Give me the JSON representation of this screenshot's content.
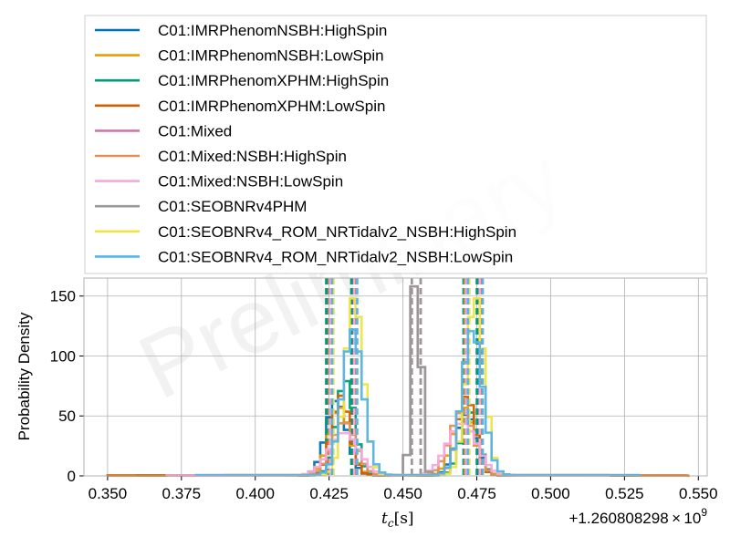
{
  "chart_data": {
    "type": "histogram",
    "title": "",
    "xlabel_var": "t",
    "xlabel_sub": "c",
    "xlabel_unit": "[s]",
    "ylabel": "Probability Density",
    "x_offset_label": "+1.260808298 × 10",
    "x_offset_exp": "9",
    "watermark": "Preliminary",
    "xlim": [
      0.342,
      0.553
    ],
    "ylim": [
      0,
      165
    ],
    "grid": true,
    "legend_location": "top",
    "x_ticks": [
      {
        "value": 0.35,
        "label": "0.350"
      },
      {
        "value": 0.375,
        "label": "0.375"
      },
      {
        "value": 0.4,
        "label": "0.400"
      },
      {
        "value": 0.425,
        "label": "0.425"
      },
      {
        "value": 0.45,
        "label": "0.450"
      },
      {
        "value": 0.475,
        "label": "0.475"
      },
      {
        "value": 0.5,
        "label": "0.500"
      },
      {
        "value": 0.525,
        "label": "0.525"
      },
      {
        "value": 0.55,
        "label": "0.550"
      }
    ],
    "y_ticks": [
      {
        "value": 0,
        "label": "0"
      },
      {
        "value": 50,
        "label": "50"
      },
      {
        "value": 100,
        "label": "100"
      },
      {
        "value": 150,
        "label": "150"
      }
    ],
    "series": [
      {
        "name": "C01:IMRPhenomNSBH:HighSpin",
        "color": "#0072b2",
        "modes": [
          {
            "center": 0.4275,
            "sd": 0.0035,
            "weight": 0.55
          },
          {
            "center": 0.4715,
            "sd": 0.0035,
            "weight": 0.45
          }
        ],
        "x_range": [
          0.36,
          0.53
        ],
        "bin_width": 0.002,
        "bounds": [
          0.4245,
          0.433,
          0.471,
          0.4755
        ]
      },
      {
        "name": "C01:IMRPhenomNSBH:LowSpin",
        "color": "#e69f00",
        "modes": [
          {
            "center": 0.4285,
            "sd": 0.0035,
            "weight": 0.5
          },
          {
            "center": 0.4705,
            "sd": 0.0035,
            "weight": 0.5
          }
        ],
        "x_range": [
          0.35,
          0.52
        ],
        "bin_width": 0.002,
        "bounds": [
          0.425,
          0.4335,
          0.4715,
          0.476
        ]
      },
      {
        "name": "C01:IMRPhenomXPHM:HighSpin",
        "color": "#009e73",
        "modes": [
          {
            "center": 0.4305,
            "sd": 0.003,
            "weight": 0.6
          },
          {
            "center": 0.4725,
            "sd": 0.003,
            "weight": 0.4
          }
        ],
        "x_range": [
          0.39,
          0.51
        ],
        "bin_width": 0.002,
        "bounds": [
          0.424,
          0.4325,
          0.4705,
          0.475
        ]
      },
      {
        "name": "C01:IMRPhenomXPHM:LowSpin",
        "color": "#d55e00",
        "modes": [
          {
            "center": 0.429,
            "sd": 0.003,
            "weight": 0.5
          },
          {
            "center": 0.4715,
            "sd": 0.003,
            "weight": 0.5
          }
        ],
        "x_range": [
          0.35,
          0.547
        ],
        "bin_width": 0.002,
        "bounds": [
          0.4255,
          0.434,
          0.4715,
          0.4765
        ]
      },
      {
        "name": "C01:Mixed",
        "color": "#cc79a7",
        "modes": [
          {
            "center": 0.4545,
            "sd": 0.0015,
            "weight": 1.0
          }
        ],
        "x_range": [
          0.45,
          0.46
        ],
        "bin_width": 0.0025,
        "bounds": [
          0.453,
          0.456
        ]
      },
      {
        "name": "C01:Mixed:NSBH:HighSpin",
        "color": "#e0915a",
        "modes": [
          {
            "center": 0.43,
            "sd": 0.004,
            "weight": 0.45
          },
          {
            "center": 0.47,
            "sd": 0.004,
            "weight": 0.55
          }
        ],
        "x_range": [
          0.38,
          0.52
        ],
        "bin_width": 0.002,
        "bounds": [
          0.425,
          0.4335,
          0.471,
          0.476
        ]
      },
      {
        "name": "C01:Mixed:NSBH:LowSpin",
        "color": "#f7a8e0",
        "modes": [
          {
            "center": 0.43,
            "sd": 0.005,
            "weight": 0.45
          },
          {
            "center": 0.47,
            "sd": 0.005,
            "weight": 0.55
          }
        ],
        "x_range": [
          0.37,
          0.52
        ],
        "bin_width": 0.002,
        "bounds": [
          0.4255,
          0.4335,
          0.4715,
          0.476
        ]
      },
      {
        "name": "C01:SEOBNRv4PHM",
        "color": "#999999",
        "modes": [
          {
            "center": 0.4545,
            "sd": 0.0015,
            "weight": 1.0
          }
        ],
        "x_range": [
          0.45,
          0.46
        ],
        "bin_width": 0.0025,
        "bounds": [
          0.453,
          0.456
        ]
      },
      {
        "name": "C01:SEOBNRv4_ROM_NRTidalv2_NSBH:HighSpin",
        "color": "#f0e442",
        "modes": [
          {
            "center": 0.4335,
            "sd": 0.003,
            "weight": 0.5
          },
          {
            "center": 0.4745,
            "sd": 0.003,
            "weight": 0.5
          }
        ],
        "x_range": [
          0.39,
          0.52
        ],
        "bin_width": 0.002,
        "bounds": [
          0.4265,
          0.4345,
          0.4725,
          0.477
        ]
      },
      {
        "name": "C01:SEOBNRv4_ROM_NRTidalv2_NSBH:LowSpin",
        "color": "#56b4e9",
        "modes": [
          {
            "center": 0.433,
            "sd": 0.0035,
            "weight": 0.5
          },
          {
            "center": 0.4735,
            "sd": 0.0035,
            "weight": 0.5
          }
        ],
        "x_range": [
          0.38,
          0.53
        ],
        "bin_width": 0.002,
        "bounds": [
          0.426,
          0.4345,
          0.472,
          0.477
        ]
      }
    ],
    "peak_values": [
      {
        "name": "C01:Mixed",
        "peak": 158
      },
      {
        "name": "C01:SEOBNRv4PHM",
        "peak": 158
      },
      {
        "name": "C01:SEOBNRv4_ROM_NRTidalv2_NSBH:HighSpin",
        "peak": 148
      },
      {
        "name": "C01:SEOBNRv4_ROM_NRTidalv2_NSBH:LowSpin",
        "peak": 122
      }
    ]
  }
}
